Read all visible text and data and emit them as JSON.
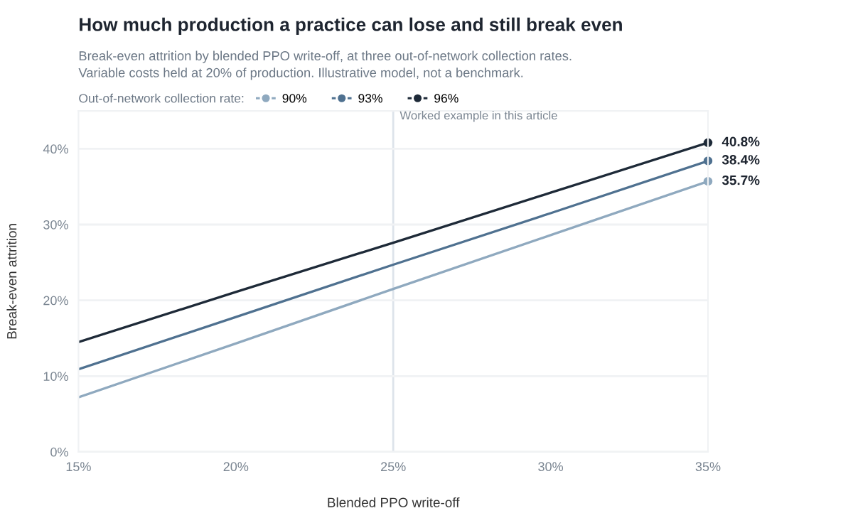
{
  "chart_data": {
    "type": "line",
    "title": "How much production a practice can lose and still break even",
    "subtitle": "Break-even attrition by blended PPO write-off, at three out-of-network collection rates.\nVariable costs held at 20% of production. Illustrative model, not a benchmark.",
    "xlabel": "Blended PPO write-off",
    "ylabel": "Break-even attrition",
    "legend_title": "Out-of-network collection rate:",
    "x": [
      15,
      20,
      25,
      30,
      35
    ],
    "series": [
      {
        "name": "90%",
        "color": "#8fa9bf",
        "values": [
          7.2,
          14.3,
          21.5,
          28.6,
          35.7
        ],
        "value_labels": [
          null,
          null,
          null,
          null,
          "35.7%"
        ]
      },
      {
        "name": "93%",
        "color": "#4f7190",
        "values": [
          10.9,
          17.8,
          24.7,
          31.5,
          38.4
        ],
        "value_labels": [
          null,
          null,
          null,
          null,
          "38.4%"
        ]
      },
      {
        "name": "96%",
        "color": "#1e2a38",
        "values": [
          14.5,
          21.1,
          27.6,
          34.2,
          40.8
        ],
        "value_labels": [
          null,
          null,
          null,
          null,
          "40.8%"
        ]
      }
    ],
    "xlim": [
      15,
      35
    ],
    "ylim": [
      0,
      45
    ],
    "xticks": [
      {
        "value": 15,
        "label": "15%"
      },
      {
        "value": 20,
        "label": "20%"
      },
      {
        "value": 25,
        "label": "25%"
      },
      {
        "value": 30,
        "label": "30%"
      },
      {
        "value": 35,
        "label": "35%"
      }
    ],
    "yticks": [
      {
        "value": 0,
        "label": "0%"
      },
      {
        "value": 10,
        "label": "10%"
      },
      {
        "value": 20,
        "label": "20%"
      },
      {
        "value": 30,
        "label": "30%"
      },
      {
        "value": 40,
        "label": "40%"
      }
    ],
    "ref_lines": [
      {
        "axis": "x",
        "value": 25,
        "label": "Worked example in this article",
        "color": "#dde3ea"
      }
    ],
    "grid": "y",
    "legend": "top left",
    "line_style": "solid"
  }
}
